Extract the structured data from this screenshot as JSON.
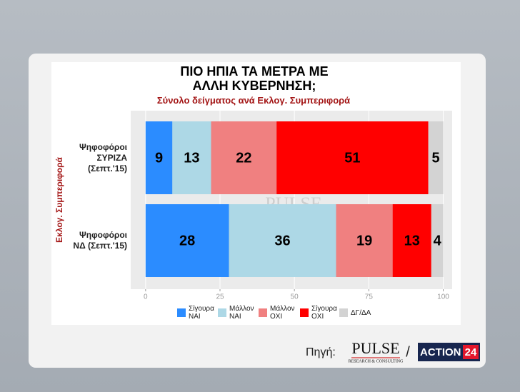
{
  "chart_data": {
    "type": "stacked-barh",
    "title": "ΠΙΟ ΗΠΙΑ ΤΑ ΜΕΤΡΑ ΜΕ ΑΛΛΗ ΚΥΒΕΡΝΗΣΗ;",
    "subtitle": "Σύνολο δείγματος ανά Εκλογ. Συμπεριφορά",
    "y_label": "Εκλογ. Συμπεριφορά",
    "categories": [
      "Ψηφοφόροι ΣΥΡΙΖΑ (Σεπτ.'15)",
      "Ψηφοφόροι ΝΔ (Σεπτ.'15)"
    ],
    "series": [
      {
        "name": "Σίγουρα ΝΑΙ",
        "color": "#2b8cff",
        "values": [
          9,
          28
        ]
      },
      {
        "name": "Μάλλον ΝΑΙ",
        "color": "#add8e6",
        "values": [
          13,
          36
        ]
      },
      {
        "name": "Μάλλον ΟΧΙ",
        "color": "#f08080",
        "values": [
          22,
          19
        ]
      },
      {
        "name": "Σίγουρα ΟΧΙ",
        "color": "#ff0000",
        "values": [
          51,
          13
        ]
      },
      {
        "name": "ΔΓ/ΔΑ",
        "color": "#d3d3d3",
        "values": [
          5,
          4
        ]
      }
    ],
    "xlim": [
      -5,
      103
    ],
    "xticks": [
      0,
      25,
      50,
      75,
      100
    ],
    "grid": true,
    "watermark": {
      "name": "PULSE",
      "tagline": "RESEARCH & CONSULTING"
    }
  },
  "footer": {
    "source_label": "Πηγή:",
    "logo1": "PULSE",
    "logo1_tagline": "RESEARCH & CONSULTING",
    "separator": "/",
    "logo2": "ACTION",
    "logo2_number": "24"
  }
}
